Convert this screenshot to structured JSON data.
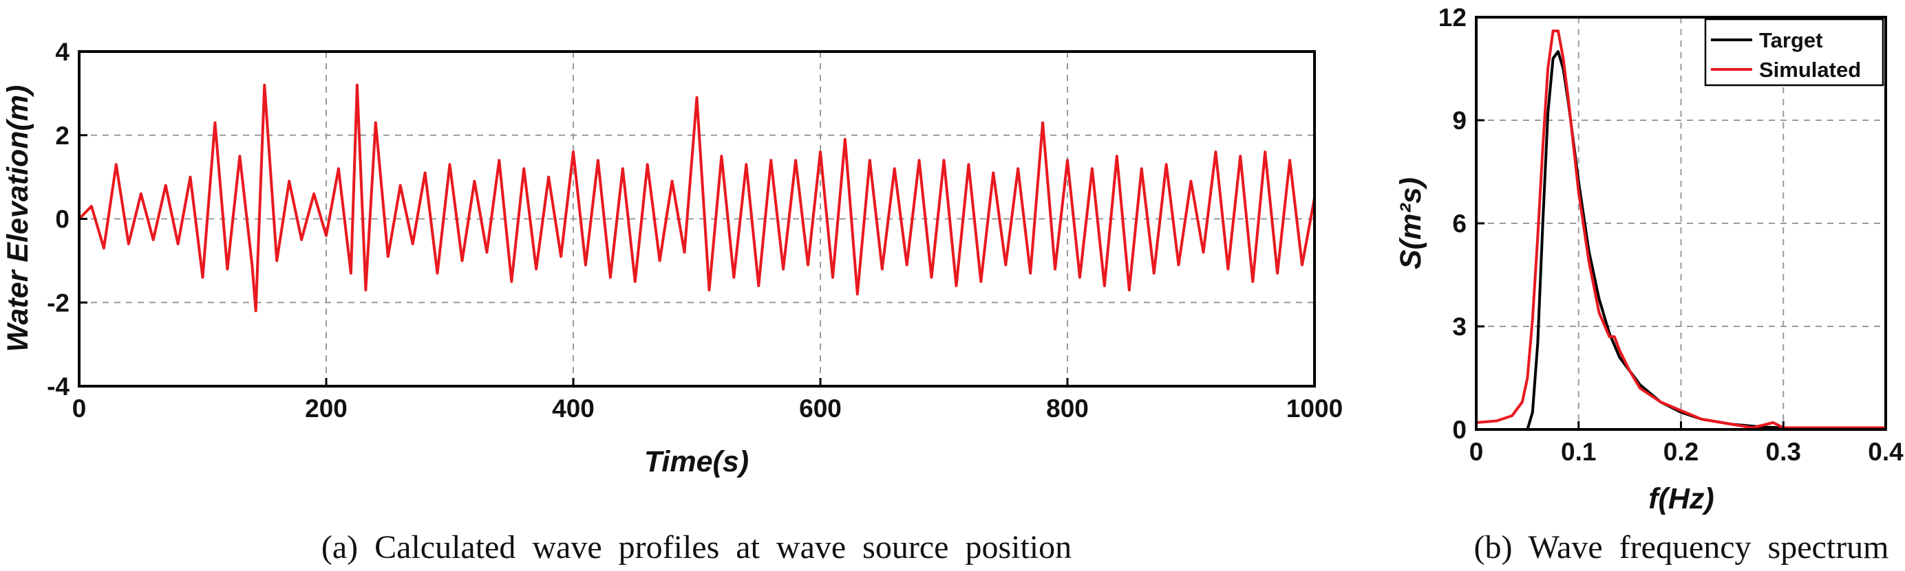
{
  "chart_data": [
    {
      "type": "line",
      "xlabel": "Time(s)",
      "ylabel": "Water Elevation(m)",
      "xlim": [
        0,
        1000
      ],
      "ylim": [
        -4,
        4
      ],
      "xticks": [
        0,
        200,
        400,
        600,
        800,
        1000
      ],
      "yticks": [
        -4,
        -2,
        0,
        2,
        4
      ],
      "grid": true,
      "caption": "(a)  Calculated  wave  profiles  at  wave  source  position",
      "series": [
        {
          "color": "#e8191f",
          "x": [
            0,
            10,
            20,
            30,
            40,
            50,
            60,
            70,
            80,
            90,
            100,
            110,
            120,
            130,
            140,
            143,
            150,
            160,
            170,
            180,
            190,
            200,
            210,
            220,
            225,
            232,
            240,
            250,
            260,
            270,
            280,
            290,
            300,
            310,
            320,
            330,
            340,
            350,
            360,
            370,
            380,
            390,
            400,
            410,
            420,
            430,
            440,
            450,
            460,
            470,
            480,
            490,
            500,
            510,
            520,
            530,
            540,
            550,
            560,
            570,
            580,
            590,
            600,
            610,
            620,
            630,
            640,
            650,
            660,
            670,
            680,
            690,
            700,
            710,
            720,
            730,
            740,
            750,
            760,
            770,
            780,
            790,
            800,
            810,
            820,
            830,
            840,
            850,
            860,
            870,
            880,
            890,
            900,
            910,
            920,
            930,
            940,
            950,
            960,
            970,
            980,
            990,
            1000
          ],
          "y": [
            0.0,
            0.3,
            -0.7,
            1.3,
            -0.6,
            0.6,
            -0.5,
            0.8,
            -0.6,
            1.0,
            -1.4,
            2.3,
            -1.2,
            1.5,
            -1.1,
            -2.2,
            3.2,
            -1.0,
            0.9,
            -0.5,
            0.6,
            -0.4,
            1.2,
            -1.3,
            3.2,
            -1.7,
            2.3,
            -0.9,
            0.8,
            -0.6,
            1.1,
            -1.3,
            1.3,
            -1.0,
            0.9,
            -0.8,
            1.4,
            -1.5,
            1.2,
            -1.2,
            1.0,
            -0.9,
            1.6,
            -1.1,
            1.4,
            -1.4,
            1.2,
            -1.5,
            1.3,
            -1.0,
            0.9,
            -0.8,
            2.9,
            -1.7,
            1.5,
            -1.4,
            1.3,
            -1.6,
            1.4,
            -1.2,
            1.4,
            -1.1,
            1.6,
            -1.4,
            1.9,
            -1.8,
            1.4,
            -1.2,
            1.2,
            -1.1,
            1.4,
            -1.4,
            1.4,
            -1.6,
            1.3,
            -1.5,
            1.1,
            -1.1,
            1.2,
            -1.3,
            2.3,
            -1.2,
            1.4,
            -1.4,
            1.2,
            -1.6,
            1.5,
            -1.7,
            1.2,
            -1.3,
            1.3,
            -1.1,
            0.9,
            -0.8,
            1.6,
            -1.2,
            1.5,
            -1.5,
            1.6,
            -1.3,
            1.4,
            -1.1,
            0.5
          ]
        }
      ]
    },
    {
      "type": "line",
      "xlabel": "f(Hz)",
      "ylabel": "S(m²s)",
      "xlim": [
        0,
        0.4
      ],
      "ylim": [
        0,
        12
      ],
      "xticks": [
        0,
        0.1,
        0.2,
        0.3,
        0.4
      ],
      "xticklabels": [
        "0",
        "0.1",
        "0.2",
        "0.3",
        "0.4"
      ],
      "yticks": [
        0,
        3,
        6,
        9,
        12
      ],
      "grid": true,
      "legend": "top-right",
      "caption": "(b)  Wave  frequency  spectrum",
      "series": [
        {
          "name": "Target",
          "color": "#000000",
          "x": [
            0.05,
            0.055,
            0.06,
            0.065,
            0.07,
            0.075,
            0.08,
            0.085,
            0.09,
            0.1,
            0.11,
            0.12,
            0.13,
            0.14,
            0.16,
            0.18,
            0.2,
            0.22,
            0.25,
            0.28,
            0.3
          ],
          "y": [
            0.0,
            0.5,
            2.5,
            6.0,
            9.2,
            10.8,
            11.0,
            10.5,
            9.5,
            7.2,
            5.2,
            3.8,
            2.8,
            2.1,
            1.3,
            0.8,
            0.5,
            0.3,
            0.15,
            0.07,
            0.05
          ]
        },
        {
          "name": "Simulated",
          "color": "#e8191f",
          "x": [
            0.0,
            0.02,
            0.035,
            0.045,
            0.05,
            0.055,
            0.06,
            0.065,
            0.07,
            0.075,
            0.08,
            0.085,
            0.09,
            0.1,
            0.11,
            0.12,
            0.13,
            0.135,
            0.14,
            0.15,
            0.16,
            0.18,
            0.2,
            0.22,
            0.25,
            0.27,
            0.29,
            0.3,
            0.35,
            0.4
          ],
          "y": [
            0.2,
            0.25,
            0.4,
            0.8,
            1.5,
            3.2,
            5.6,
            8.2,
            10.5,
            11.6,
            11.6,
            10.8,
            9.6,
            6.9,
            4.9,
            3.4,
            2.7,
            2.7,
            2.3,
            1.7,
            1.2,
            0.8,
            0.55,
            0.3,
            0.15,
            0.05,
            0.2,
            0.05,
            0.05,
            0.05
          ]
        }
      ]
    }
  ]
}
